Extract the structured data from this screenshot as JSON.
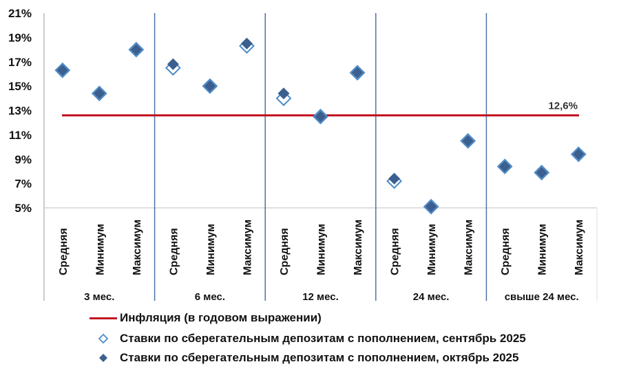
{
  "chart_data": {
    "type": "scatter",
    "ylim": [
      5,
      21
    ],
    "yticks": [
      "5%",
      "7%",
      "9%",
      "11%",
      "13%",
      "15%",
      "17%",
      "19%",
      "21%"
    ],
    "ytick_values": [
      5,
      7,
      9,
      11,
      13,
      15,
      17,
      19,
      21
    ],
    "groups": [
      "3 мес.",
      "6 мес.",
      "12 мес.",
      "24 мес.",
      "свыше 24 мес."
    ],
    "categories": [
      "Средняя",
      "Минимум",
      "Максимум"
    ],
    "series": [
      {
        "name": "Ставки по сберегательным депозитам с пополнением, сентябрь 2025",
        "marker": "hollow-diamond",
        "values": [
          16.3,
          14.4,
          18.0,
          16.5,
          15.0,
          18.3,
          14.0,
          12.5,
          16.1,
          7.2,
          5.1,
          10.5,
          8.4,
          7.9,
          9.4
        ]
      },
      {
        "name": "Ставки по сберегательным депозитам с пополнением, октябрь 2025",
        "marker": "filled-diamond",
        "values": [
          16.3,
          14.4,
          18.0,
          16.8,
          15.0,
          18.5,
          14.4,
          12.5,
          16.1,
          7.4,
          5.1,
          10.5,
          8.4,
          7.9,
          9.4
        ]
      }
    ],
    "inflation": {
      "name": "Инфляция (в годовом выражении)",
      "value": 12.6,
      "label": "12,6%"
    },
    "colors": {
      "inflation": "#c0101e",
      "september": "#4a8bcb",
      "october": "#3b5f8e",
      "separator": "#4a72a8"
    },
    "legend_position": "bottom",
    "grid": false
  }
}
